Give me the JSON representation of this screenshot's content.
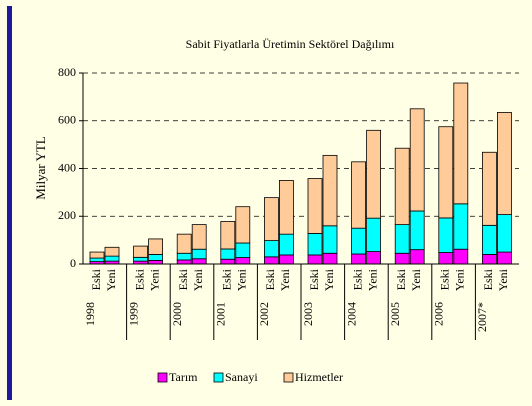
{
  "chart_data": {
    "type": "stacked-bar",
    "title": "Sabit Fiyatlarla Üretimin Sektörel Dağılımı",
    "y_label": "Milyar YTL",
    "groups": [
      "1998",
      "1999",
      "2000",
      "2001",
      "2002",
      "2003",
      "2004",
      "2005",
      "2006",
      "2007*"
    ],
    "categories": [
      "Eski",
      "Yeni",
      "Eski",
      "Yeni",
      "Eski",
      "Yeni",
      "Eski",
      "Yeni",
      "Eski",
      "Yeni",
      "Eski",
      "Yeni",
      "Eski",
      "Yeni",
      "Eski",
      "Yeni",
      "Eski",
      "Yeni",
      "Eski",
      "Yeni"
    ],
    "series": [
      {
        "name": "Tarım",
        "color": "#ff00ff",
        "values": [
          10,
          12,
          12,
          15,
          17,
          22,
          20,
          27,
          30,
          38,
          38,
          45,
          42,
          52,
          45,
          60,
          48,
          62,
          40,
          50
        ]
      },
      {
        "name": "Sanayi",
        "color": "#00ffff",
        "values": [
          15,
          21,
          16,
          25,
          28,
          40,
          43,
          61,
          68,
          87,
          90,
          115,
          108,
          140,
          120,
          162,
          145,
          190,
          122,
          157
        ]
      },
      {
        "name": "Hizmetler",
        "color": "#ffcc99",
        "values": [
          25,
          37,
          47,
          65,
          80,
          103,
          115,
          152,
          180,
          225,
          230,
          295,
          278,
          368,
          320,
          428,
          382,
          506,
          306,
          428
        ]
      }
    ],
    "ylim": [
      0,
      800
    ],
    "yticks": [
      0,
      200,
      400,
      600,
      800
    ],
    "grid": true
  }
}
